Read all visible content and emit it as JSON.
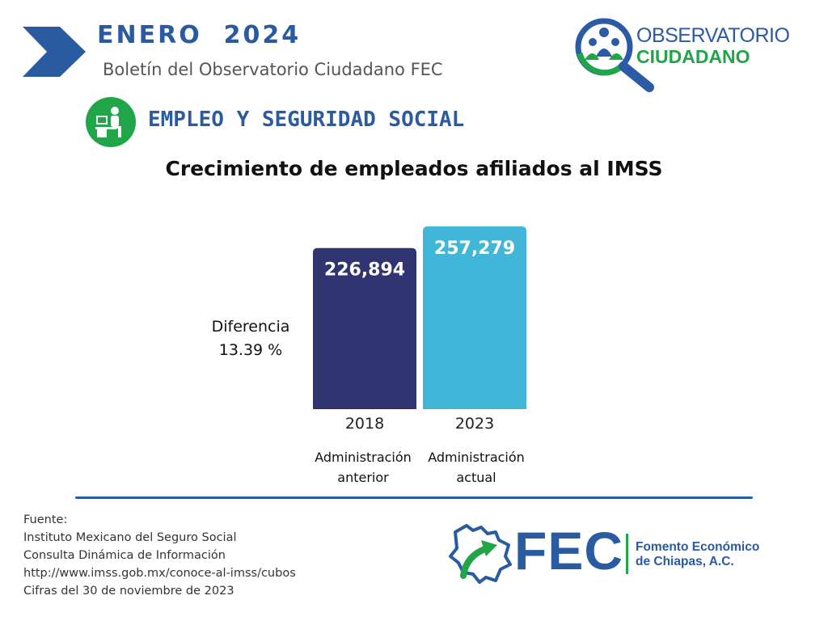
{
  "header": {
    "month": "ENERO  2024",
    "subtitle": "Boletín del Observatorio Ciudadano FEC"
  },
  "logo": {
    "line1": "OBSERVATORIO",
    "line2": "CIUDADANO",
    "icon": "magnifier-people-icon"
  },
  "section": {
    "title": "EMPLEO Y SEGURIDAD SOCIAL",
    "icon": "office-worker-icon"
  },
  "difference": {
    "label": "Diferencia",
    "value": "13.39 %"
  },
  "chart_data": {
    "type": "bar",
    "title": "Crecimiento de empleados afiliados al IMSS",
    "categories": [
      "2018",
      "2023"
    ],
    "category_notes": [
      [
        "Administración",
        "anterior"
      ],
      [
        "Administración",
        "actual"
      ]
    ],
    "values": [
      226894,
      257279
    ],
    "value_labels": [
      "226,894",
      "257,279"
    ],
    "colors": [
      "#303470",
      "#41b6d8"
    ],
    "grid": false,
    "legend": "none"
  },
  "source": {
    "lines": [
      "Fuente:",
      "Instituto Mexicano del Seguro Social",
      "Consulta Dinámica de Información",
      "http://www.imss.gob.mx/conoce-al-imss/cubos",
      "Cifras del 30 de noviembre de 2023"
    ]
  },
  "footer_logo": {
    "acronym": "FEC",
    "name_line1": "Fomento Económico",
    "name_line2": "de Chiapas, A.C.",
    "icon": "chiapas-map-arrow-icon"
  },
  "colors": {
    "primary_blue": "#2a5aa0",
    "green": "#20a548",
    "gray_text": "#555555"
  }
}
